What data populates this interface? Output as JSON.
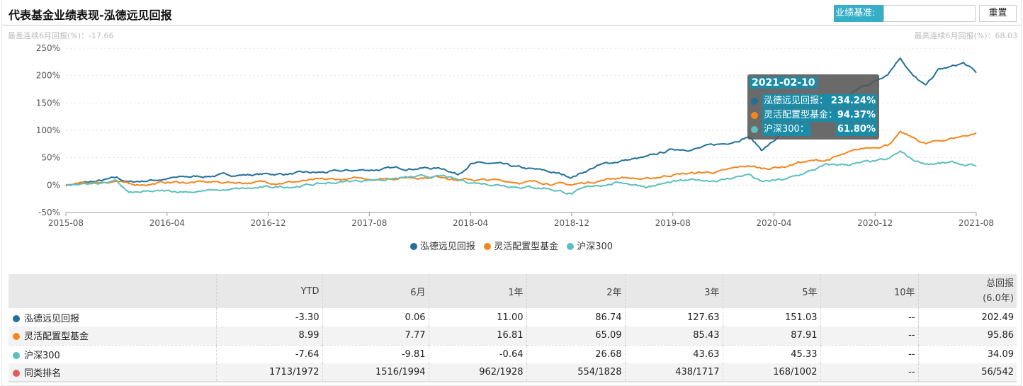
{
  "header": {
    "title": "代表基金业绩表现-泓德远见回报",
    "benchmark_label": "业绩基准:",
    "benchmark_value": "",
    "reset_label": "重置"
  },
  "stats": {
    "worst": "最差连续6月回报(%)：-17.66",
    "best": "最高连续6月回报(%)：68.03"
  },
  "colors": {
    "fund": "#21709b",
    "category": "#f5861f",
    "index": "#5cbfbf",
    "rank": "#e15e5e"
  },
  "chart_data": {
    "type": "line",
    "ylim": [
      -50,
      250
    ],
    "yticks": [
      "-50%",
      "0%",
      "50%",
      "100%",
      "150%",
      "200%",
      "250%"
    ],
    "ytick_values": [
      -50,
      0,
      50,
      100,
      150,
      200,
      250
    ],
    "xticks": [
      "2015-08",
      "2016-04",
      "2016-12",
      "2017-08",
      "2018-04",
      "2018-12",
      "2019-08",
      "2020-04",
      "2020-12",
      "2021-08"
    ],
    "x_unit": "months since 2015-08",
    "xlim": [
      0,
      72
    ],
    "grid": true,
    "legend_position": "bottom",
    "series": [
      {
        "name": "泓德远见回报",
        "key": "fund",
        "points": [
          [
            0,
            0
          ],
          [
            3,
            8
          ],
          [
            4,
            12
          ],
          [
            5,
            5
          ],
          [
            8,
            12
          ],
          [
            12,
            18
          ],
          [
            16,
            20
          ],
          [
            20,
            22
          ],
          [
            24,
            28
          ],
          [
            28,
            32
          ],
          [
            30,
            30
          ],
          [
            31,
            20
          ],
          [
            32,
            40
          ],
          [
            34,
            38
          ],
          [
            36,
            30
          ],
          [
            38,
            25
          ],
          [
            39,
            20
          ],
          [
            40,
            15
          ],
          [
            41,
            25
          ],
          [
            42,
            35
          ],
          [
            44,
            45
          ],
          [
            46,
            50
          ],
          [
            48,
            65
          ],
          [
            50,
            68
          ],
          [
            52,
            75
          ],
          [
            54,
            90
          ],
          [
            55,
            65
          ],
          [
            56,
            80
          ],
          [
            57,
            105
          ],
          [
            58,
            110
          ],
          [
            60,
            140
          ],
          [
            62,
            165
          ],
          [
            63,
            180
          ],
          [
            64,
            190
          ],
          [
            65,
            205
          ],
          [
            66,
            235
          ],
          [
            67,
            200
          ],
          [
            68,
            180
          ],
          [
            69,
            210
          ],
          [
            70,
            215
          ],
          [
            71,
            222
          ],
          [
            72,
            205
          ]
        ]
      },
      {
        "name": "灵活配置型基金",
        "key": "category",
        "points": [
          [
            0,
            0
          ],
          [
            3,
            6
          ],
          [
            4,
            8
          ],
          [
            5,
            0
          ],
          [
            8,
            5
          ],
          [
            12,
            5
          ],
          [
            16,
            5
          ],
          [
            20,
            8
          ],
          [
            24,
            12
          ],
          [
            28,
            15
          ],
          [
            30,
            16
          ],
          [
            31,
            10
          ],
          [
            32,
            10
          ],
          [
            34,
            8
          ],
          [
            36,
            6
          ],
          [
            38,
            5
          ],
          [
            40,
            0
          ],
          [
            42,
            8
          ],
          [
            44,
            15
          ],
          [
            46,
            10
          ],
          [
            48,
            20
          ],
          [
            50,
            22
          ],
          [
            52,
            25
          ],
          [
            54,
            35
          ],
          [
            55,
            30
          ],
          [
            57,
            35
          ],
          [
            58,
            42
          ],
          [
            60,
            45
          ],
          [
            62,
            58
          ],
          [
            63,
            65
          ],
          [
            65,
            75
          ],
          [
            66,
            95
          ],
          [
            67,
            85
          ],
          [
            68,
            75
          ],
          [
            70,
            85
          ],
          [
            72,
            95
          ]
        ]
      },
      {
        "name": "沪深300",
        "key": "index",
        "points": [
          [
            0,
            0
          ],
          [
            3,
            5
          ],
          [
            4,
            6
          ],
          [
            5,
            -15
          ],
          [
            8,
            -12
          ],
          [
            12,
            -10
          ],
          [
            16,
            -5
          ],
          [
            20,
            2
          ],
          [
            24,
            10
          ],
          [
            28,
            14
          ],
          [
            30,
            15
          ],
          [
            31,
            8
          ],
          [
            32,
            5
          ],
          [
            34,
            2
          ],
          [
            36,
            -2
          ],
          [
            38,
            -5
          ],
          [
            40,
            -15
          ],
          [
            42,
            0
          ],
          [
            44,
            5
          ],
          [
            46,
            -2
          ],
          [
            48,
            5
          ],
          [
            50,
            8
          ],
          [
            52,
            10
          ],
          [
            54,
            20
          ],
          [
            55,
            5
          ],
          [
            57,
            10
          ],
          [
            58,
            18
          ],
          [
            60,
            35
          ],
          [
            62,
            38
          ],
          [
            63,
            40
          ],
          [
            65,
            45
          ],
          [
            66,
            60
          ],
          [
            67,
            45
          ],
          [
            68,
            40
          ],
          [
            70,
            40
          ],
          [
            72,
            34
          ]
        ]
      }
    ],
    "tooltip": {
      "date": "2021-02-10",
      "rows": [
        {
          "name": "泓德远见回报：",
          "value": "234.24%"
        },
        {
          "name": "灵活配置型基金：",
          "value": "94.37%"
        },
        {
          "name": "沪深300：",
          "value": "61.80%"
        }
      ]
    }
  },
  "table": {
    "headers": [
      "",
      "YTD",
      "6月",
      "1年",
      "2年",
      "3年",
      "5年",
      "10年"
    ],
    "total_header": "总回报",
    "total_sub": "(6.0年)",
    "rows": [
      {
        "name": "泓德远见回报",
        "cells": [
          "-3.30",
          "0.06",
          "11.00",
          "86.74",
          "127.63",
          "151.03",
          "--",
          "202.49"
        ]
      },
      {
        "name": "灵活配置型基金",
        "cells": [
          "8.99",
          "7.77",
          "16.81",
          "65.09",
          "85.43",
          "87.91",
          "--",
          "95.86"
        ]
      },
      {
        "name": "沪深300",
        "cells": [
          "-7.64",
          "-9.81",
          "-0.64",
          "26.68",
          "43.63",
          "45.33",
          "--",
          "34.09"
        ]
      },
      {
        "name": "同类排名",
        "cells": [
          "1713/1972",
          "1516/1994",
          "962/1928",
          "554/1828",
          "438/1717",
          "168/1002",
          "--",
          "56/542"
        ]
      }
    ]
  }
}
